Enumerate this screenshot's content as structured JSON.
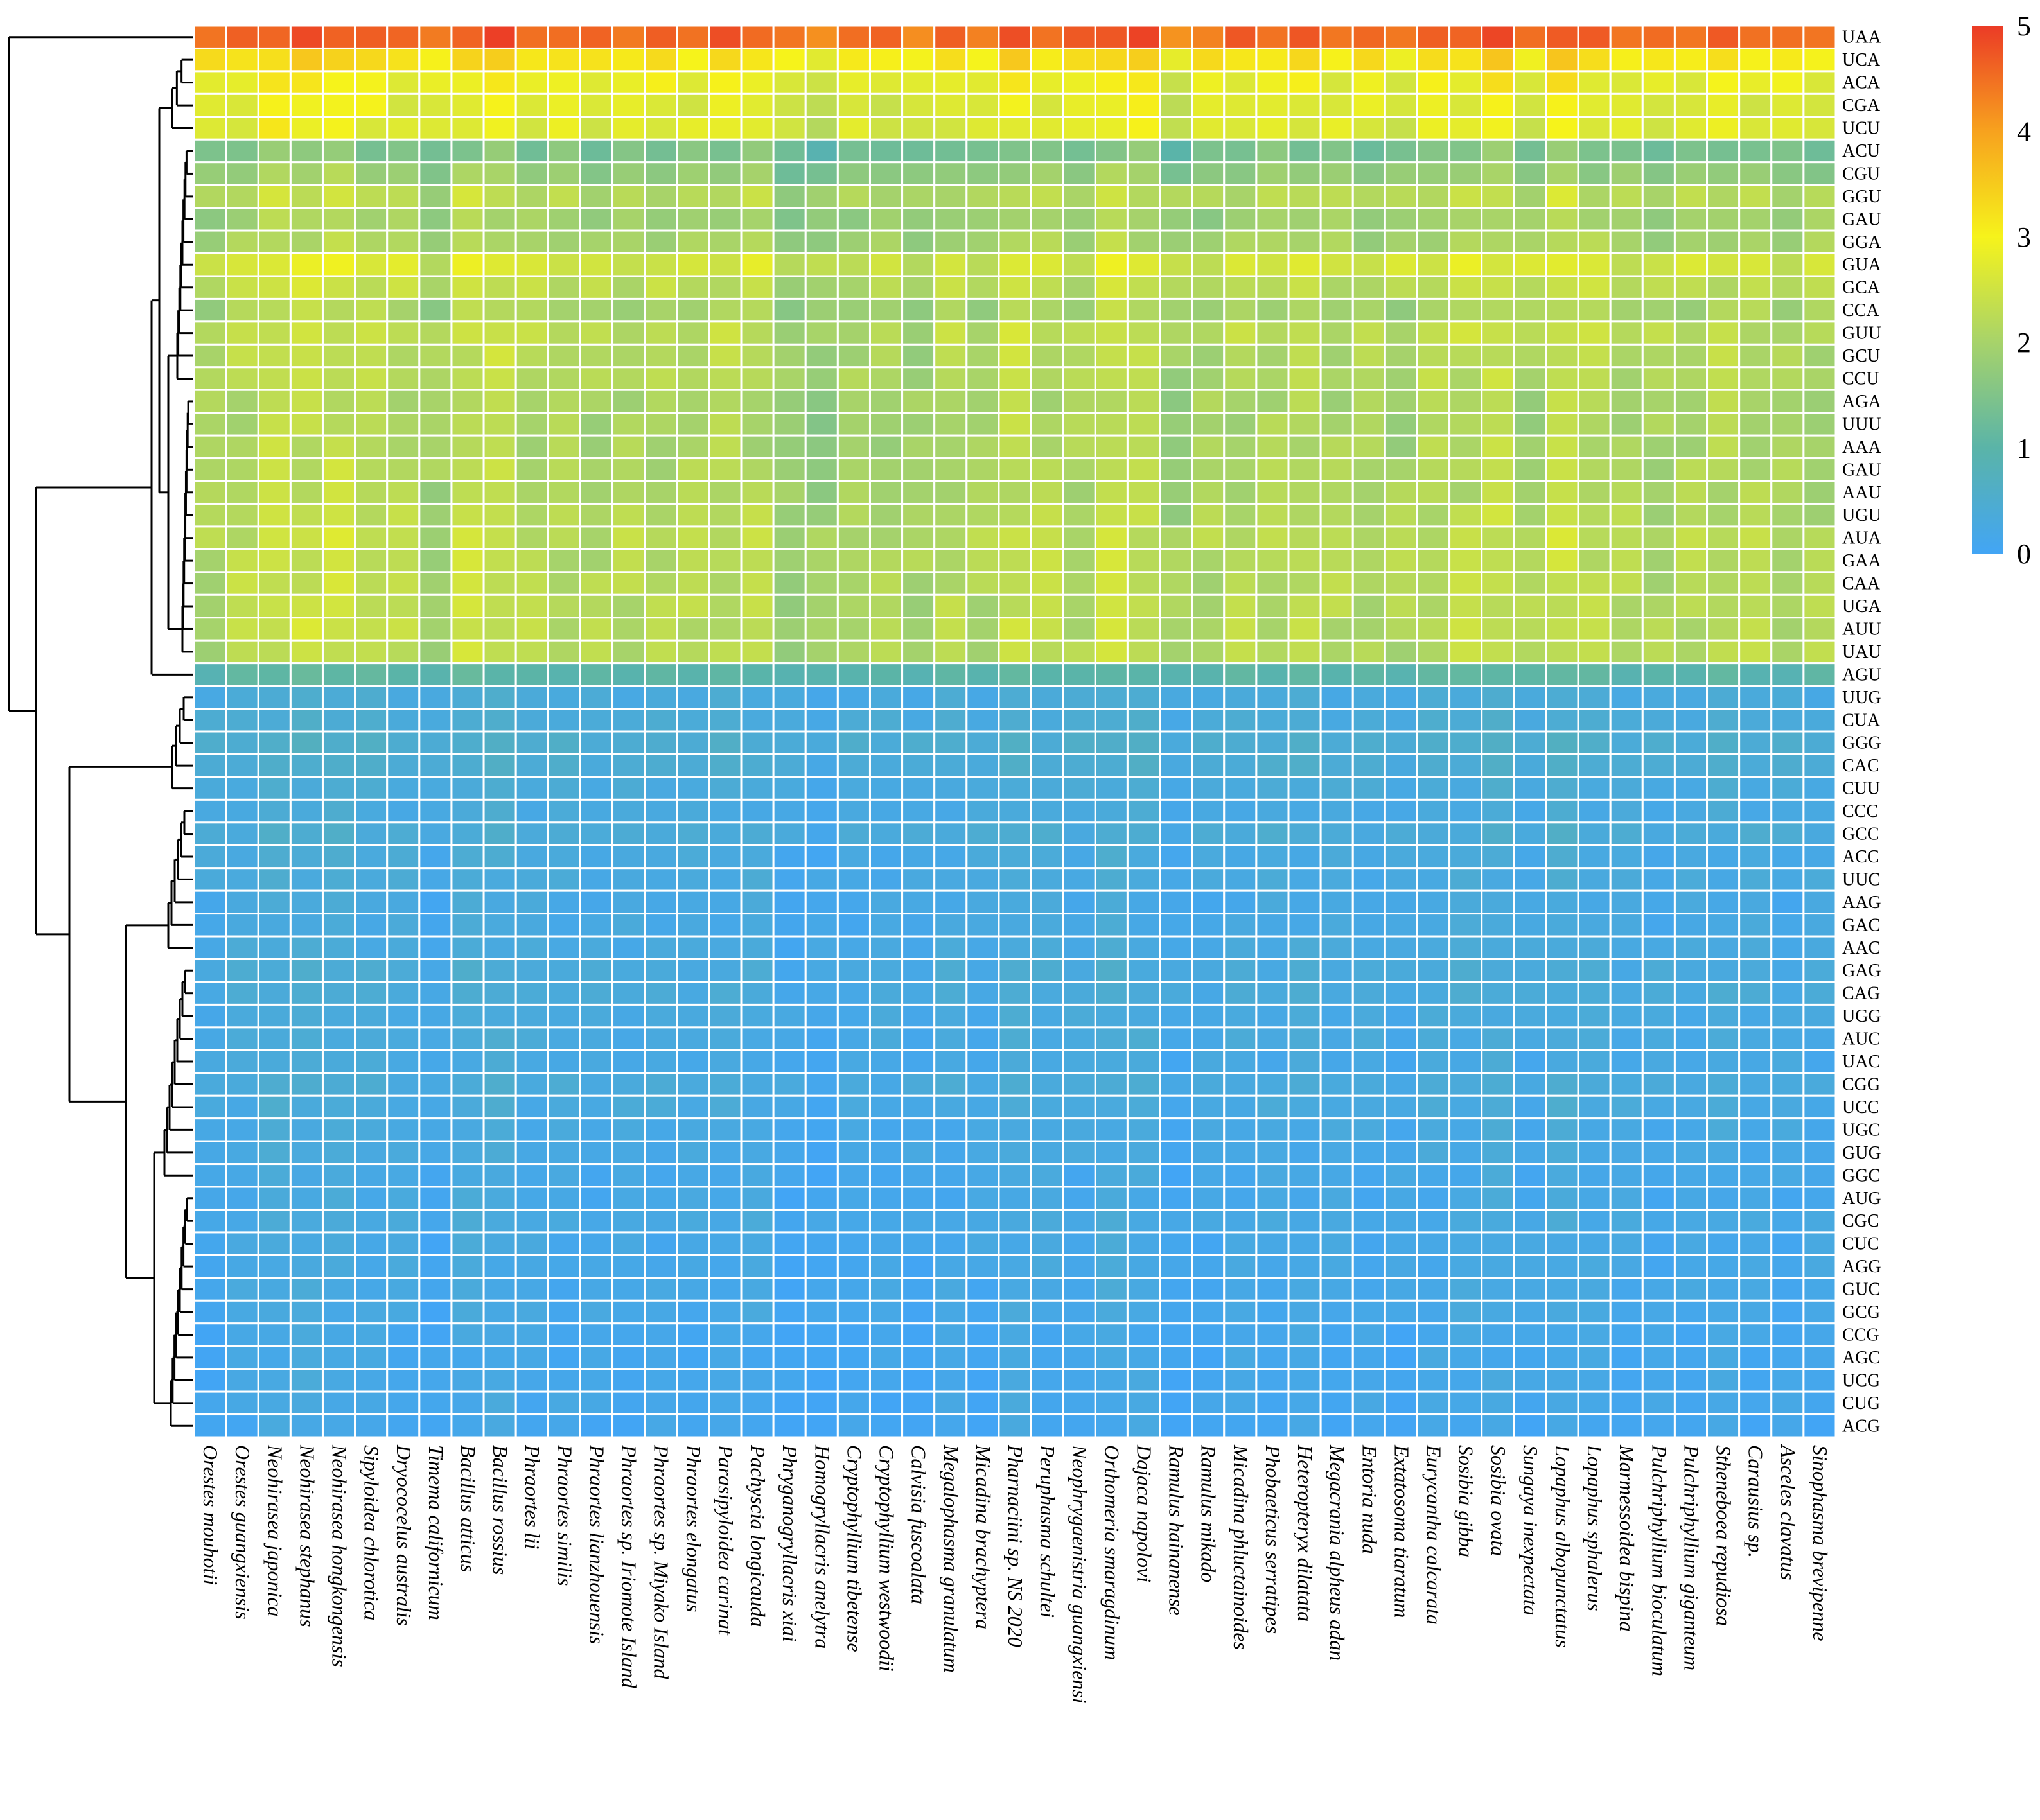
{
  "chart_data": {
    "type": "heatmap",
    "title": "",
    "xlabel": "",
    "ylabel": "",
    "rows": [
      "UAA",
      "UCA",
      "ACA",
      "CGA",
      "UCU",
      "ACU",
      "CGU",
      "GGU",
      "GAU",
      "GGA",
      "GUA",
      "GCA",
      "CCA",
      "GUU",
      "GCU",
      "CCU",
      "AGA",
      "UUU",
      "AAA",
      "GAU",
      "AAU",
      "UGU",
      "AUA",
      "GAA",
      "CAA",
      "UGA",
      "AUU",
      "UAU",
      "AGU",
      "UUG",
      "CUA",
      "GGG",
      "CAC",
      "CUU",
      "CCC",
      "GCC",
      "ACC",
      "UUC",
      "AAG",
      "GAC",
      "AAC",
      "GAG",
      "CAG",
      "UGG",
      "AUC",
      "UAC",
      "CGG",
      "UCC",
      "UGC",
      "GUG",
      "GGC",
      "AUG",
      "CGC",
      "CUC",
      "AGG",
      "GUC",
      "GCG",
      "CCG",
      "AGC",
      "UCG",
      "CUG",
      "ACG"
    ],
    "columns": [
      "Orestes mouhotii",
      "Orestes guangxiensis",
      "Neohirasea japonica",
      "Neohirasea stephanus",
      "Neohirasea hongkongensis",
      "Sipyloidea chlorotica",
      "Dryococelus australis",
      "Timema californicum",
      "Bacillus atticus",
      "Bacillus rossius",
      "Phraortes lii",
      "Phraortes similis",
      "Phraortes lianzhouensis",
      "Phraortes sp. Iriomote Island",
      "Phraortes sp. Miyako Island",
      "Phraortes elongatus",
      "Parasipyloidea carinat",
      "Pachyscia longicauda",
      "Phryganogryllacris xiai",
      "Homogryllacris anelytra",
      "Cryptophyllium tibetense",
      "Cryptophyllium westwoodii",
      "Calvisia fuscoalata",
      "Megalophasma granulatum",
      "Micadina brachyptera",
      "Pharnaciini sp. NS 2020",
      "Peruphasma schultei",
      "Neophrygaenistria guangxiensi",
      "Orthomeria smaragdinum",
      "Dajaca napolovi",
      "Ramulus hainanense",
      "Ramulus mikado",
      "Micadina phluctainoides",
      "Phobaeticus serratipes",
      "Heteropteryx dilatata",
      "Megacrania alpheus adan",
      "Entoria nuda",
      "Extatosoma tiaratum",
      "Eurycantha calcarata",
      "Sosibia gibba",
      "Sosibia ovata",
      "Sungaya inexpectata",
      "Lopaphus albopunctatus",
      "Lopaphus sphalerus",
      "Marmessoidea bispina",
      "Pulchriphyllium bioculatum",
      "Pulchriphyllium giganteum",
      "Stheneboea repudiosa",
      "Carausius sp.",
      "Asceles clavatus",
      "Sinophasma brevipenne"
    ],
    "row_base": [
      4.45,
      3.1,
      2.75,
      2.6,
      2.6,
      1.35,
      1.65,
      2.1,
      1.8,
      1.9,
      2.45,
      2.15,
      1.9,
      2.15,
      2.05,
      2.05,
      1.95,
      1.95,
      1.95,
      2.0,
      2.0,
      2.05,
      2.15,
      2.1,
      2.1,
      2.1,
      2.1,
      2.1,
      0.95,
      0.3,
      0.35,
      0.45,
      0.4,
      0.3,
      0.25,
      0.35,
      0.25,
      0.25,
      0.2,
      0.2,
      0.25,
      0.3,
      0.3,
      0.25,
      0.25,
      0.2,
      0.3,
      0.25,
      0.2,
      0.2,
      0.15,
      0.15,
      0.2,
      0.15,
      0.15,
      0.15,
      0.15,
      0.1,
      0.1,
      0.1,
      0.1,
      0.05
    ],
    "column_offsets": [
      0.0,
      0.15,
      0.35,
      0.35,
      0.35,
      0.2,
      0.15,
      -0.1,
      0.3,
      0.3,
      0.1,
      0.1,
      0.05,
      0.1,
      0.1,
      0.1,
      0.15,
      0.15,
      -0.2,
      -0.25,
      0.0,
      0.0,
      -0.1,
      0.1,
      0.0,
      0.3,
      0.15,
      0.05,
      0.35,
      0.25,
      -0.15,
      0.0,
      0.1,
      0.1,
      0.15,
      0.05,
      0.05,
      0.0,
      0.15,
      0.2,
      0.3,
      0.0,
      0.35,
      0.15,
      0.05,
      0.0,
      0.05,
      0.15,
      0.1,
      0.0,
      0.05
    ],
    "scale": {
      "min": 0,
      "max": 5,
      "ticks": [
        0,
        1,
        2,
        3,
        4,
        5
      ],
      "colors": [
        "#42a5f5",
        "#5ab4a8",
        "#a7d36a",
        "#f6f31b",
        "#f7a21e",
        "#eb3b26"
      ]
    },
    "legend_position": "right",
    "dendrogram": "rows, left",
    "grid": "white cell borders"
  }
}
